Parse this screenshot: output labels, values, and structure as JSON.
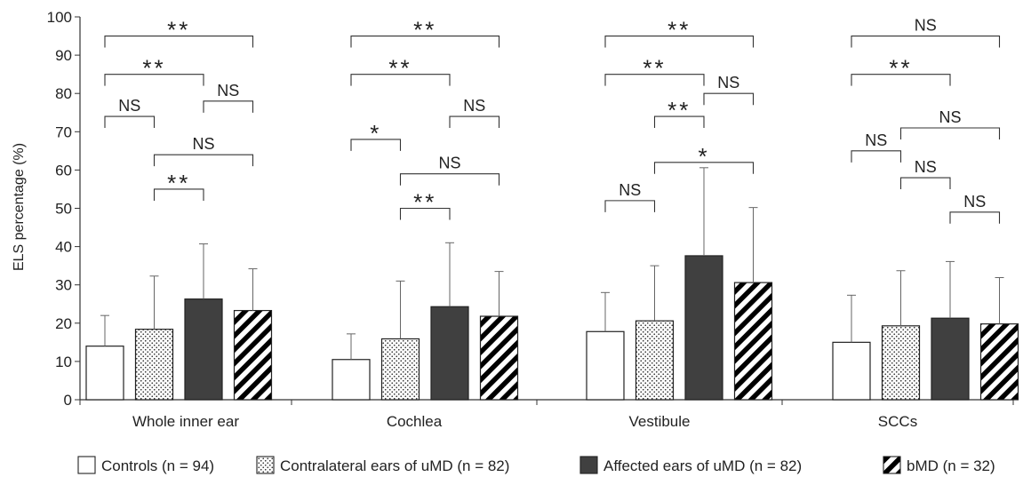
{
  "chart_data": {
    "type": "bar",
    "ylabel": "ELS percentage (%)",
    "ylim": [
      0,
      100
    ],
    "yticks": [
      0,
      10,
      20,
      30,
      40,
      50,
      60,
      70,
      80,
      90,
      100
    ],
    "grid": false,
    "legend_position": "bottom",
    "categories": [
      "Whole inner ear",
      "Cochlea",
      "Vestibule",
      "SCCs"
    ],
    "series": [
      {
        "name": "Controls (n = 94)",
        "pattern": "white",
        "values": [
          14,
          10.5,
          17.8,
          15
        ],
        "error_upper": [
          22,
          17.2,
          28,
          27.3
        ]
      },
      {
        "name": "Contralateral ears of uMD (n = 82)",
        "pattern": "dotted",
        "values": [
          18.4,
          15.9,
          20.6,
          19.3
        ],
        "error_upper": [
          32.3,
          31,
          35,
          33.7
        ]
      },
      {
        "name": "Affected ears of uMD (n = 82)",
        "pattern": "dark",
        "values": [
          26.3,
          24.3,
          37.6,
          21.3
        ],
        "error_upper": [
          40.7,
          41,
          60.6,
          36.1
        ]
      },
      {
        "name": "bMD (n = 32)",
        "pattern": "hatched",
        "values": [
          23.3,
          21.8,
          30.6,
          19.8
        ],
        "error_upper": [
          34.2,
          33.5,
          50.2,
          31.9
        ]
      }
    ],
    "significance": [
      {
        "category": 0,
        "from": 0,
        "to": 3,
        "y": 95,
        "label": "**"
      },
      {
        "category": 0,
        "from": 0,
        "to": 2,
        "y": 85,
        "label": "**"
      },
      {
        "category": 0,
        "from": 2,
        "to": 3,
        "y": 78,
        "label": "NS"
      },
      {
        "category": 0,
        "from": 0,
        "to": 1,
        "y": 74,
        "label": "NS"
      },
      {
        "category": 0,
        "from": 1,
        "to": 3,
        "y": 64,
        "label": "NS"
      },
      {
        "category": 0,
        "from": 1,
        "to": 2,
        "y": 55,
        "label": "**"
      },
      {
        "category": 1,
        "from": 0,
        "to": 3,
        "y": 95,
        "label": "**"
      },
      {
        "category": 1,
        "from": 0,
        "to": 2,
        "y": 85,
        "label": "**"
      },
      {
        "category": 1,
        "from": 2,
        "to": 3,
        "y": 74,
        "label": "NS"
      },
      {
        "category": 1,
        "from": 0,
        "to": 1,
        "y": 68,
        "label": "*"
      },
      {
        "category": 1,
        "from": 1,
        "to": 3,
        "y": 59,
        "label": "NS"
      },
      {
        "category": 1,
        "from": 1,
        "to": 2,
        "y": 50,
        "label": "**"
      },
      {
        "category": 2,
        "from": 0,
        "to": 3,
        "y": 95,
        "label": "**"
      },
      {
        "category": 2,
        "from": 0,
        "to": 2,
        "y": 85,
        "label": "**"
      },
      {
        "category": 2,
        "from": 2,
        "to": 3,
        "y": 80,
        "label": "NS"
      },
      {
        "category": 2,
        "from": 1,
        "to": 2,
        "y": 74,
        "label": "**"
      },
      {
        "category": 2,
        "from": 1,
        "to": 3,
        "y": 62,
        "label": "*"
      },
      {
        "category": 2,
        "from": 0,
        "to": 1,
        "y": 52,
        "label": "NS"
      },
      {
        "category": 3,
        "from": 0,
        "to": 3,
        "y": 95,
        "label": "NS"
      },
      {
        "category": 3,
        "from": 0,
        "to": 2,
        "y": 85,
        "label": "**"
      },
      {
        "category": 3,
        "from": 1,
        "to": 3,
        "y": 71,
        "label": "NS"
      },
      {
        "category": 3,
        "from": 0,
        "to": 1,
        "y": 65,
        "label": "NS"
      },
      {
        "category": 3,
        "from": 1,
        "to": 2,
        "y": 58,
        "label": "NS"
      },
      {
        "category": 3,
        "from": 2,
        "to": 3,
        "y": 49,
        "label": "NS"
      }
    ]
  }
}
